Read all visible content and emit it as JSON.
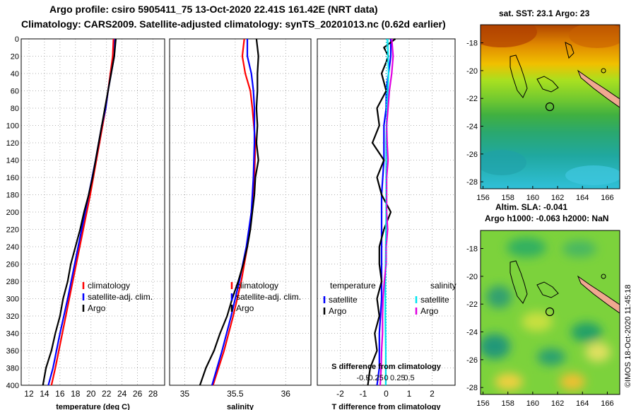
{
  "title_line1": "Argo profile: csiro 5905411_75 13-Oct-2020 22.41S 161.42E (NRT data)",
  "title_line2": "Climatology: CARS2009. Satellite-adjusted climatology: synTS_20201013.nc (0.62d earlier)",
  "map_sst_title": "sat. SST: 23.1 Argo: 23",
  "map_sla_title1": "Altim. SLA: -0.041",
  "map_sla_title2": "Argo h1000: -0.063 h2000: NaN",
  "credit": "©IMOS 18-Oct-2020 11:45:18",
  "colors": {
    "climatology": "#ff0000",
    "satellite_adj": "#0000ff",
    "argo": "#000000",
    "temp_sat": "#0000ff",
    "temp_argo": "#000000",
    "sal_sat": "#00e5ee",
    "sal_argo": "#e000e0"
  },
  "chart_data": [
    {
      "type": "line",
      "id": "temperature",
      "xlabel": "temperature (deg C)",
      "ylabel": "",
      "xlim": [
        11,
        29.5
      ],
      "ylim": [
        400,
        0
      ],
      "xticks": [
        12,
        14,
        16,
        18,
        20,
        22,
        24,
        26,
        28
      ],
      "yticks": [
        0,
        20,
        40,
        60,
        80,
        100,
        120,
        140,
        160,
        180,
        200,
        220,
        240,
        260,
        280,
        300,
        320,
        340,
        360,
        380,
        400
      ],
      "legend": [
        "climatology",
        "satellite-adj. clim.",
        "Argo"
      ],
      "series": [
        {
          "name": "climatology",
          "depth": [
            0,
            20,
            40,
            60,
            80,
            100,
            140,
            180,
            220,
            260,
            300,
            340,
            380,
            400
          ],
          "values": [
            22.9,
            22.8,
            22.5,
            22.2,
            21.9,
            21.5,
            20.7,
            19.9,
            19.0,
            18.1,
            17.2,
            16.3,
            15.4,
            14.9
          ]
        },
        {
          "name": "satellite-adj. clim.",
          "depth": [
            0,
            20,
            40,
            60,
            80,
            100,
            140,
            180,
            220,
            260,
            300,
            340,
            380,
            400
          ],
          "values": [
            23.1,
            23.0,
            22.6,
            22.2,
            21.9,
            21.4,
            20.6,
            19.7,
            18.8,
            17.9,
            17.0,
            16.0,
            15.1,
            14.5
          ]
        },
        {
          "name": "Argo",
          "depth": [
            0,
            20,
            40,
            60,
            80,
            100,
            120,
            140,
            160,
            180,
            200,
            220,
            240,
            260,
            280,
            300,
            320,
            340,
            360,
            380,
            400
          ],
          "values": [
            23.2,
            23.0,
            22.6,
            22.2,
            21.8,
            21.4,
            21.0,
            20.6,
            20.2,
            19.7,
            19.1,
            18.6,
            18.0,
            17.4,
            17.0,
            16.4,
            16.0,
            15.4,
            14.9,
            14.2,
            13.8
          ]
        }
      ]
    },
    {
      "type": "line",
      "id": "salinity",
      "xlabel": "salinity",
      "ylabel": "",
      "xlim": [
        34.85,
        36.25
      ],
      "ylim": [
        400,
        0
      ],
      "xticks": [
        35,
        35.5,
        36
      ],
      "legend": [
        "climatology",
        "satellite-adj. clim.",
        "Argo"
      ],
      "series": [
        {
          "name": "climatology",
          "depth": [
            0,
            20,
            40,
            60,
            80,
            120,
            160,
            200,
            240,
            280,
            320,
            360,
            400
          ],
          "values": [
            35.59,
            35.57,
            35.6,
            35.65,
            35.67,
            35.7,
            35.69,
            35.66,
            35.62,
            35.56,
            35.48,
            35.39,
            35.28
          ]
        },
        {
          "name": "satellite-adj. clim.",
          "depth": [
            0,
            20,
            40,
            60,
            80,
            120,
            160,
            200,
            240,
            280,
            320,
            360,
            400
          ],
          "values": [
            35.62,
            35.62,
            35.66,
            35.68,
            35.69,
            35.69,
            35.68,
            35.66,
            35.61,
            35.54,
            35.46,
            35.37,
            35.27
          ]
        },
        {
          "name": "Argo",
          "depth": [
            0,
            20,
            40,
            60,
            80,
            100,
            120,
            140,
            160,
            180,
            200,
            220,
            240,
            260,
            280,
            300,
            320,
            340,
            360,
            380,
            400
          ],
          "values": [
            35.71,
            35.73,
            35.72,
            35.72,
            35.71,
            35.72,
            35.71,
            35.73,
            35.7,
            35.69,
            35.67,
            35.65,
            35.62,
            35.58,
            35.53,
            35.47,
            35.42,
            35.35,
            35.29,
            35.21,
            35.15
          ]
        }
      ]
    },
    {
      "type": "line",
      "id": "difference",
      "xlabel": "T difference from climatology",
      "x2label": "S difference from climatology",
      "xlim": [
        -3,
        3
      ],
      "ylim": [
        400,
        0
      ],
      "xticks": [
        -2,
        -1,
        0,
        1,
        2
      ],
      "x2ticks": [
        -0.5,
        -0.25,
        0,
        0.25,
        0.5
      ],
      "x2ticklabels": [
        "-0.5",
        "-0.25",
        "0",
        "0.25",
        "0.5"
      ],
      "legend_temp_title": "temperature",
      "legend_sal_title": "salinity",
      "legend": [
        "satellite",
        "Argo",
        "satellite",
        "Argo"
      ],
      "series": [
        {
          "name": "temperature satellite",
          "depth": [
            0,
            20,
            40,
            60,
            80,
            100,
            140,
            180,
            220,
            260,
            300,
            340,
            380,
            400
          ],
          "values": [
            0.2,
            0.2,
            0.1,
            0.0,
            0.0,
            -0.1,
            -0.1,
            -0.2,
            -0.2,
            -0.2,
            -0.2,
            -0.3,
            -0.3,
            -0.4
          ]
        },
        {
          "name": "temperature Argo",
          "depth": [
            0,
            10,
            20,
            40,
            60,
            80,
            100,
            120,
            140,
            160,
            180,
            200,
            220,
            240,
            260,
            280,
            300,
            320,
            340,
            360,
            380,
            400
          ],
          "values": [
            0.4,
            -0.1,
            0.1,
            -0.2,
            0.0,
            -0.4,
            -0.3,
            -0.6,
            -0.1,
            -0.4,
            -0.2,
            0.2,
            -0.1,
            -0.3,
            -0.3,
            -0.2,
            -0.4,
            -0.3,
            -0.5,
            -0.4,
            -0.7,
            -0.8
          ]
        },
        {
          "name": "salinity satellite",
          "depth": [
            0,
            40,
            80,
            120,
            160,
            200,
            240,
            280,
            320,
            360,
            400
          ],
          "values": [
            0.03,
            0.05,
            0.02,
            0.0,
            0.0,
            0.0,
            -0.01,
            -0.02,
            -0.02,
            -0.01,
            -0.01
          ]
        },
        {
          "name": "salinity Argo",
          "depth": [
            0,
            20,
            40,
            60,
            80,
            100,
            120,
            140,
            160,
            180,
            200,
            220,
            240,
            260,
            280,
            300,
            320,
            340,
            360,
            380,
            400
          ],
          "values": [
            0.12,
            0.15,
            0.12,
            0.07,
            0.04,
            0.01,
            0.02,
            0.04,
            0.01,
            0.01,
            0.01,
            0.03,
            0.0,
            0.0,
            -0.04,
            -0.07,
            -0.08,
            -0.08,
            -0.1,
            -0.11,
            -0.13
          ]
        }
      ]
    },
    {
      "type": "heatmap",
      "id": "sst_map",
      "title": "sat. SST: 23.1 Argo: 23",
      "xlim": [
        155.8,
        167
      ],
      "ylim": [
        -28.5,
        -16.7
      ],
      "xticks": [
        156,
        158,
        160,
        162,
        164,
        166
      ],
      "xticklabels": [
        "156",
        "158",
        "160",
        "162",
        "164",
        "166"
      ],
      "yticks": [
        -18,
        -20,
        -22,
        -24,
        -26,
        -28
      ],
      "yticklabels": [
        "-18",
        "-20",
        "-22",
        "-24",
        "-26",
        "-28"
      ],
      "profile_lon": 161.42,
      "profile_lat": -22.41
    },
    {
      "type": "heatmap",
      "id": "sla_map",
      "title": "Argo h1000: -0.063 h2000: NaN",
      "xlim": [
        155.8,
        167
      ],
      "ylim": [
        -28.5,
        -16.7
      ],
      "xticks": [
        156,
        158,
        160,
        162,
        164,
        166
      ],
      "xticklabels": [
        "156",
        "158",
        "160",
        "162",
        "164",
        "166"
      ],
      "yticks": [
        -18,
        -20,
        -22,
        -24,
        -26,
        -28
      ],
      "yticklabels": [
        "-18",
        "-20",
        "-22",
        "-24",
        "-26",
        "-28"
      ],
      "profile_lon": 161.42,
      "profile_lat": -22.41
    }
  ]
}
